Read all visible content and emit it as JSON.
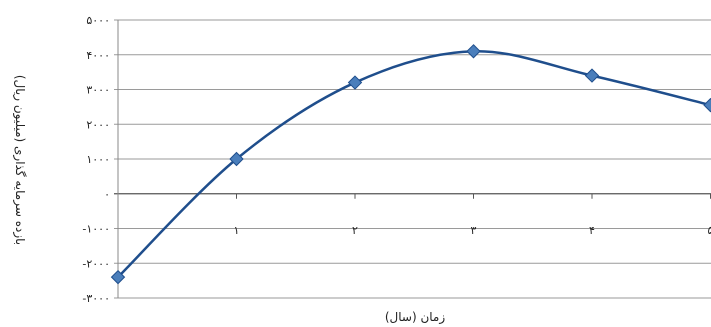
{
  "chart_data": {
    "type": "line",
    "title": "",
    "xlabel": "زمان (سال)",
    "ylabel": "بازده سرمایه گذاری (میلیون ریال)",
    "x": [
      0,
      1,
      2,
      3,
      4,
      5
    ],
    "x_tick_labels": [
      "۱",
      "۲",
      "۳",
      "۴",
      "۵"
    ],
    "y_tick_labels": [
      "۵۰۰۰",
      "۴۰۰۰",
      "۳۰۰۰",
      "۲۰۰۰",
      "۱۰۰۰",
      "۰",
      "-۱۰۰۰",
      "-۲۰۰۰",
      "-۳۰۰۰"
    ],
    "series": [
      {
        "values": [
          -2400,
          1000,
          3200,
          4100,
          3400,
          2550
        ]
      }
    ],
    "ylim": [
      -3000,
      5000
    ],
    "grid": true,
    "line_color": "#1f4e8c",
    "marker_color": "#4a7ebb",
    "grid_color": "#9a9a9a"
  }
}
